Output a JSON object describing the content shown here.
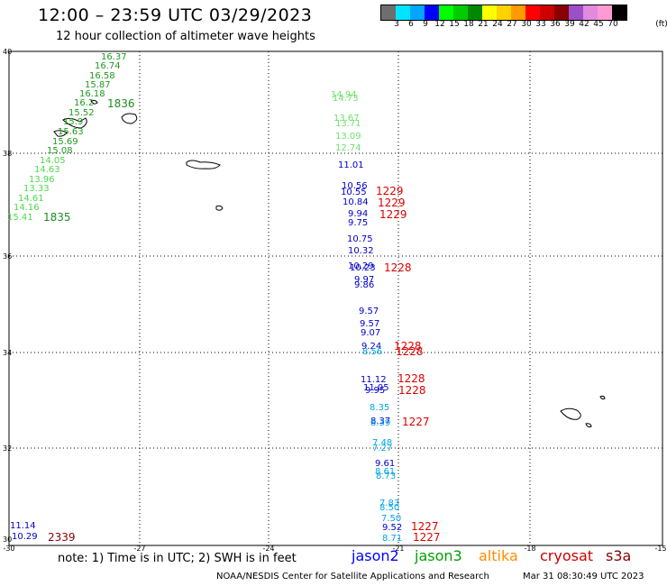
{
  "header": {
    "title": "12:00 – 23:59 UTC 03/29/2023",
    "subtitle": "12 hour collection of altimeter wave heights"
  },
  "colorbar": {
    "colors": [
      "#6e6e6e",
      "#00e5ff",
      "#00a6ff",
      "#0000ff",
      "#00ff00",
      "#00cc00",
      "#008800",
      "#ffff00",
      "#ffd200",
      "#ff9a00",
      "#ff0000",
      "#cc0000",
      "#880000",
      "#9b4fc8",
      "#e08ae0",
      "#ff9ad2",
      "#000000"
    ],
    "labels": [
      "3",
      "6",
      "9",
      "12",
      "15",
      "18",
      "21",
      "24",
      "27",
      "30",
      "33",
      "36",
      "39",
      "42",
      "45",
      "70",
      "(ft)"
    ]
  },
  "axes": {
    "y_ticks": [
      "40",
      "38",
      "36",
      "34",
      "32",
      "30"
    ],
    "x_ticks": [
      "-30",
      "-27",
      "-24",
      "-21",
      "-18",
      "-15"
    ]
  },
  "wave_heights": {
    "green_track": [
      "16.37",
      "16.74",
      "16.58",
      "15.87",
      "16.18",
      "16.2",
      "15.52",
      "15.9",
      "15.63",
      "15.69",
      "15.08"
    ],
    "lightgreen_track": [
      "14.05",
      "14.63",
      "13.96",
      "13.33",
      "14.61",
      "14.16",
      "15.41"
    ],
    "green_times": [
      "1836",
      "1835"
    ],
    "central_lightgreen": [
      "14.94",
      "14.73",
      "13.67",
      "13.71",
      "13.09",
      "12.74"
    ],
    "central_blue": [
      "11.01",
      "10.56",
      "10.55",
      "10.84",
      "9.94",
      "9.75",
      "10.75",
      "10.32",
      "10.29",
      "10.23",
      "9.97",
      "9.86",
      "9.57",
      "9.57",
      "9.07",
      "9.24",
      "11.12",
      "11.05",
      "9.95",
      "8.37",
      "9.61",
      "9.52"
    ],
    "central_cyan": [
      "8.56",
      "8.35",
      "8.39",
      "7.48",
      "7.27",
      "8.61",
      "8.73",
      "7.83",
      "8.50",
      "7.50",
      "8.71"
    ],
    "red_times": [
      "1229",
      "1229",
      "1229",
      "1228",
      "1228",
      "1228",
      "1228",
      "1228",
      "1227",
      "1227",
      "1227"
    ],
    "southwest_values": [
      "11.14",
      "10.29"
    ],
    "darkred_time": "2339"
  },
  "note": "note:  1) Time is in UTC;  2) SWH is in feet",
  "legend": [
    {
      "label": "jason2",
      "color": "#0000ff"
    },
    {
      "label": "jason3",
      "color": "#00a000"
    },
    {
      "label": "altika",
      "color": "#ff8c00"
    },
    {
      "label": "cryosat",
      "color": "#cc0000"
    },
    {
      "label": "s3a",
      "color": "#880000"
    }
  ],
  "footer": {
    "credit": "NOAA/NESDIS Center for Satellite Applications and Research",
    "timestamp": "Mar 31 08:30:49 UTC 2023"
  }
}
